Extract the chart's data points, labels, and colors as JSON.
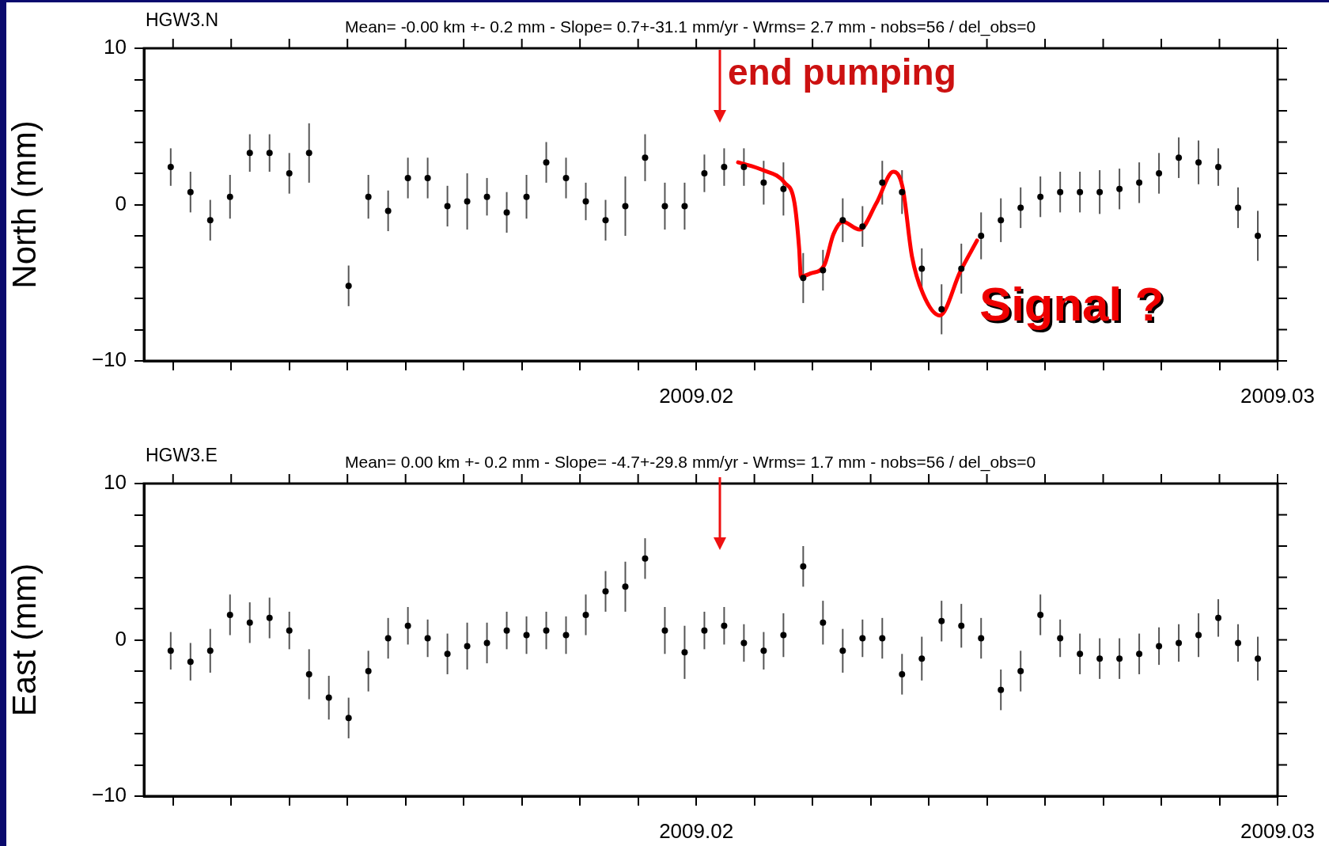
{
  "chart_data": [
    {
      "type": "scatter",
      "title": "HGW3.N",
      "subtitle": "Mean= -0.00 km +- 0.2 mm - Slope= 0.7+-31.1 mm/yr - Wrms= 2.7 mm - nobs=56 / del_obs=0",
      "ylabel": "North (mm)",
      "marker": "circle",
      "x": [
        2009.01096,
        2009.0113,
        2009.01164,
        2009.01198,
        2009.01232,
        2009.01266,
        2009.013,
        2009.01334,
        2009.01368,
        2009.01402,
        2009.01436,
        2009.0147,
        2009.01504,
        2009.01538,
        2009.01572,
        2009.01606,
        2009.0164,
        2009.01674,
        2009.01708,
        2009.01742,
        2009.01776,
        2009.0181,
        2009.01844,
        2009.01878,
        2009.01912,
        2009.01946,
        2009.0198,
        2009.02014,
        2009.02048,
        2009.02082,
        2009.02116,
        2009.0215,
        2009.02184,
        2009.02218,
        2009.02252,
        2009.02286,
        2009.0232,
        2009.02354,
        2009.02388,
        2009.02422,
        2009.02456,
        2009.0249,
        2009.02524,
        2009.02558,
        2009.02592,
        2009.02626,
        2009.0266,
        2009.02694,
        2009.02728,
        2009.02762,
        2009.02796,
        2009.0283,
        2009.02864,
        2009.02898,
        2009.02932,
        2009.02966
      ],
      "xlim": [
        2009.0105,
        2009.03
      ],
      "xticks": [
        {
          "value": 2009.011,
          "label": null
        },
        {
          "value": 2009.012,
          "label": null
        },
        {
          "value": 2009.013,
          "label": null
        },
        {
          "value": 2009.014,
          "label": null
        },
        {
          "value": 2009.015,
          "label": null
        },
        {
          "value": 2009.016,
          "label": null
        },
        {
          "value": 2009.017,
          "label": null
        },
        {
          "value": 2009.018,
          "label": null
        },
        {
          "value": 2009.019,
          "label": null
        },
        {
          "value": 2009.02,
          "label": "2009.02"
        },
        {
          "value": 2009.021,
          "label": null
        },
        {
          "value": 2009.022,
          "label": null
        },
        {
          "value": 2009.023,
          "label": null
        },
        {
          "value": 2009.024,
          "label": null
        },
        {
          "value": 2009.025,
          "label": null
        },
        {
          "value": 2009.026,
          "label": null
        },
        {
          "value": 2009.027,
          "label": null
        },
        {
          "value": 2009.028,
          "label": null
        },
        {
          "value": 2009.029,
          "label": null
        },
        {
          "value": 2009.03,
          "label": "2009.03"
        }
      ],
      "ylim": [
        -10,
        10
      ],
      "yticks": [
        {
          "value": -10,
          "label": "−10"
        },
        {
          "value": -8,
          "label": null
        },
        {
          "value": -6,
          "label": null
        },
        {
          "value": -4,
          "label": null
        },
        {
          "value": -2,
          "label": null
        },
        {
          "value": 0,
          "label": "0"
        },
        {
          "value": 2,
          "label": null
        },
        {
          "value": 4,
          "label": null
        },
        {
          "value": 6,
          "label": null
        },
        {
          "value": 8,
          "label": null
        },
        {
          "value": 10,
          "label": "10"
        }
      ],
      "series": [
        {
          "color": "#000000",
          "values": [
            2.4,
            0.8,
            -1.0,
            0.5,
            3.3,
            3.3,
            2.0,
            3.3,
            null,
            -5.2,
            0.5,
            -0.4,
            1.7,
            1.7,
            -0.1,
            0.2,
            0.5,
            -0.5,
            0.5,
            2.7,
            1.7,
            0.2,
            -1.0,
            -0.1,
            3.0,
            -0.1,
            -0.1,
            2.0,
            2.4,
            2.4,
            1.4,
            1.0,
            -4.7,
            -4.2,
            -1.0,
            -1.4,
            1.4,
            0.8,
            -4.1,
            -6.7,
            -4.1,
            -2.0,
            -1.0,
            -0.2,
            0.5,
            0.8,
            0.8,
            0.8,
            1.0,
            1.4,
            2.0,
            3.0,
            2.7,
            2.4,
            -0.2,
            -2.0
          ],
          "errors": [
            1.2,
            1.3,
            1.3,
            1.4,
            1.2,
            1.2,
            1.3,
            1.9,
            null,
            1.3,
            1.4,
            1.3,
            1.3,
            1.3,
            1.3,
            1.8,
            1.2,
            1.3,
            1.4,
            1.3,
            1.3,
            1.2,
            1.3,
            1.9,
            1.5,
            1.5,
            1.5,
            1.2,
            1.2,
            1.2,
            1.4,
            1.7,
            1.6,
            1.3,
            1.4,
            1.3,
            1.4,
            1.4,
            1.3,
            1.6,
            1.6,
            1.5,
            1.4,
            1.3,
            1.3,
            1.3,
            1.3,
            1.4,
            1.3,
            1.3,
            1.3,
            1.3,
            1.4,
            1.2,
            1.3,
            1.6
          ]
        },
        {
          "type": "line",
          "marker": "none",
          "color": "#ff0000",
          "x": [
            2009.02072,
            2009.02115,
            2009.02152,
            2009.02169,
            2009.02177,
            2009.0218,
            2009.02197,
            2009.0222,
            2009.02236,
            2009.02252,
            2009.02281,
            2009.0231,
            2009.02339,
            2009.02355,
            2009.02371,
            2009.0239,
            2009.02419,
            2009.02454,
            2009.02483
          ],
          "values": [
            2.7,
            2.2,
            1.4,
            0.1,
            -2.8,
            -4.6,
            -4.4,
            -3.9,
            -1.9,
            -1.1,
            -1.6,
            0.1,
            2.1,
            1.1,
            -3.3,
            -5.7,
            -7.1,
            -4.3,
            -2.3
          ]
        }
      ],
      "annotations": [
        "end pumping",
        "Signal ?"
      ]
    },
    {
      "type": "scatter",
      "title": "HGW3.E",
      "subtitle": "Mean= 0.00 km +- 0.2 mm - Slope= -4.7+-29.8 mm/yr - Wrms= 1.7 mm - nobs=56 / del_obs=0",
      "ylabel": "East (mm)",
      "marker": "circle",
      "x": [
        2009.01096,
        2009.0113,
        2009.01164,
        2009.01198,
        2009.01232,
        2009.01266,
        2009.013,
        2009.01334,
        2009.01368,
        2009.01402,
        2009.01436,
        2009.0147,
        2009.01504,
        2009.01538,
        2009.01572,
        2009.01606,
        2009.0164,
        2009.01674,
        2009.01708,
        2009.01742,
        2009.01776,
        2009.0181,
        2009.01844,
        2009.01878,
        2009.01912,
        2009.01946,
        2009.0198,
        2009.02014,
        2009.02048,
        2009.02082,
        2009.02116,
        2009.0215,
        2009.02184,
        2009.02218,
        2009.02252,
        2009.02286,
        2009.0232,
        2009.02354,
        2009.02388,
        2009.02422,
        2009.02456,
        2009.0249,
        2009.02524,
        2009.02558,
        2009.02592,
        2009.02626,
        2009.0266,
        2009.02694,
        2009.02728,
        2009.02762,
        2009.02796,
        2009.0283,
        2009.02864,
        2009.02898,
        2009.02932,
        2009.02966
      ],
      "xlim": [
        2009.0105,
        2009.03
      ],
      "xticks": [
        {
          "value": 2009.011,
          "label": null
        },
        {
          "value": 2009.012,
          "label": null
        },
        {
          "value": 2009.013,
          "label": null
        },
        {
          "value": 2009.014,
          "label": null
        },
        {
          "value": 2009.015,
          "label": null
        },
        {
          "value": 2009.016,
          "label": null
        },
        {
          "value": 2009.017,
          "label": null
        },
        {
          "value": 2009.018,
          "label": null
        },
        {
          "value": 2009.019,
          "label": null
        },
        {
          "value": 2009.02,
          "label": "2009.02"
        },
        {
          "value": 2009.021,
          "label": null
        },
        {
          "value": 2009.022,
          "label": null
        },
        {
          "value": 2009.023,
          "label": null
        },
        {
          "value": 2009.024,
          "label": null
        },
        {
          "value": 2009.025,
          "label": null
        },
        {
          "value": 2009.026,
          "label": null
        },
        {
          "value": 2009.027,
          "label": null
        },
        {
          "value": 2009.028,
          "label": null
        },
        {
          "value": 2009.029,
          "label": null
        },
        {
          "value": 2009.03,
          "label": "2009.03"
        }
      ],
      "ylim": [
        -10,
        10
      ],
      "yticks": [
        {
          "value": -10,
          "label": "−10"
        },
        {
          "value": -8,
          "label": null
        },
        {
          "value": -6,
          "label": null
        },
        {
          "value": -4,
          "label": null
        },
        {
          "value": -2,
          "label": null
        },
        {
          "value": 0,
          "label": "0"
        },
        {
          "value": 2,
          "label": null
        },
        {
          "value": 4,
          "label": null
        },
        {
          "value": 6,
          "label": null
        },
        {
          "value": 8,
          "label": null
        },
        {
          "value": 10,
          "label": "10"
        }
      ],
      "series": [
        {
          "color": "#000000",
          "values": [
            -0.7,
            -1.4,
            -0.7,
            1.6,
            1.1,
            1.4,
            0.6,
            -2.2,
            -3.7,
            -5.0,
            -2.0,
            0.1,
            0.9,
            0.1,
            -0.9,
            -0.4,
            -0.2,
            0.6,
            0.3,
            0.6,
            0.3,
            1.6,
            3.1,
            3.4,
            5.2,
            0.6,
            -0.8,
            0.6,
            0.9,
            -0.2,
            -0.7,
            0.3,
            4.7,
            1.1,
            -0.7,
            0.1,
            0.1,
            -2.2,
            -1.2,
            1.2,
            0.9,
            0.1,
            -3.2,
            -2.0,
            1.6,
            0.1,
            -0.9,
            -1.2,
            -1.2,
            -0.9,
            -0.4,
            -0.2,
            0.3,
            1.4,
            -0.2,
            -1.2
          ],
          "errors": [
            1.2,
            1.2,
            1.4,
            1.3,
            1.3,
            1.3,
            1.2,
            1.6,
            1.4,
            1.3,
            1.3,
            1.3,
            1.2,
            1.2,
            1.3,
            1.5,
            1.3,
            1.2,
            1.2,
            1.2,
            1.2,
            1.3,
            1.3,
            1.6,
            1.3,
            1.5,
            1.7,
            1.2,
            1.2,
            1.2,
            1.2,
            1.4,
            1.3,
            1.4,
            1.4,
            1.2,
            1.3,
            1.3,
            1.4,
            1.3,
            1.4,
            1.3,
            1.3,
            1.3,
            1.3,
            1.2,
            1.3,
            1.3,
            1.3,
            1.3,
            1.2,
            1.2,
            1.4,
            1.2,
            1.2,
            1.4
          ]
        }
      ]
    }
  ]
}
